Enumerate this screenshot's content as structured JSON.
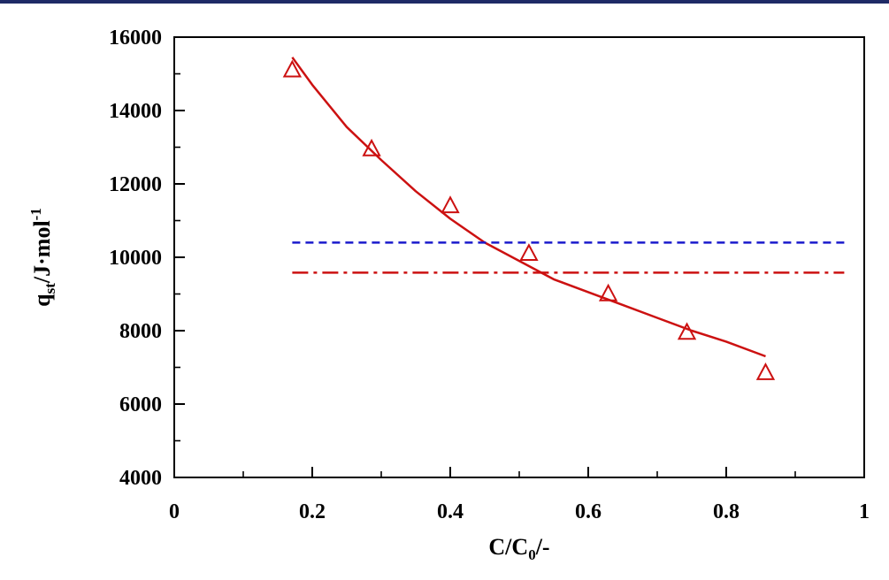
{
  "colors": {
    "header_rule": "#1f2a66",
    "axis": "#000000",
    "fit_curve": "#cc1111",
    "markers": "#cc1111",
    "blue_dashed": "#1a1acc",
    "red_dashdot": "#cc1111"
  },
  "chart_data": {
    "type": "scatter",
    "title": "",
    "xlabel": {
      "main": "C/C",
      "sub": "0",
      "tail": "/-"
    },
    "ylabel": {
      "main": "q",
      "sub": "st",
      "mid": "/J·mol",
      "sup": "-1"
    },
    "xlim": [
      0,
      1
    ],
    "ylim": [
      4000,
      16000
    ],
    "x_ticks": [
      "0",
      "0.2",
      "0.4",
      "0.6",
      "0.8",
      "1"
    ],
    "y_ticks": [
      "4000",
      "6000",
      "8000",
      "10000",
      "12000",
      "14000",
      "16000"
    ],
    "grid": false,
    "legend": "none",
    "series": [
      {
        "kind": "markers",
        "marker": "triangle-open",
        "x": [
          0.171,
          0.286,
          0.4,
          0.514,
          0.629,
          0.743,
          0.857
        ],
        "y": [
          15100,
          12950,
          11400,
          10100,
          9000,
          7950,
          6850
        ]
      },
      {
        "kind": "fit-curve",
        "style": "solid",
        "x": [
          0.171,
          0.2,
          0.25,
          0.3,
          0.35,
          0.4,
          0.45,
          0.5,
          0.55,
          0.6,
          0.65,
          0.7,
          0.75,
          0.8,
          0.857
        ],
        "y": [
          15450,
          14700,
          13550,
          12650,
          11800,
          11050,
          10400,
          9900,
          9400,
          9050,
          8700,
          8350,
          8000,
          7700,
          7300
        ]
      },
      {
        "kind": "reference-line",
        "style": "dashed",
        "x": [
          0.171,
          0.971
        ],
        "y": [
          10400,
          10400
        ]
      },
      {
        "kind": "reference-line",
        "style": "dashdot",
        "x": [
          0.171,
          0.971
        ],
        "y": [
          9580,
          9580
        ]
      }
    ]
  }
}
